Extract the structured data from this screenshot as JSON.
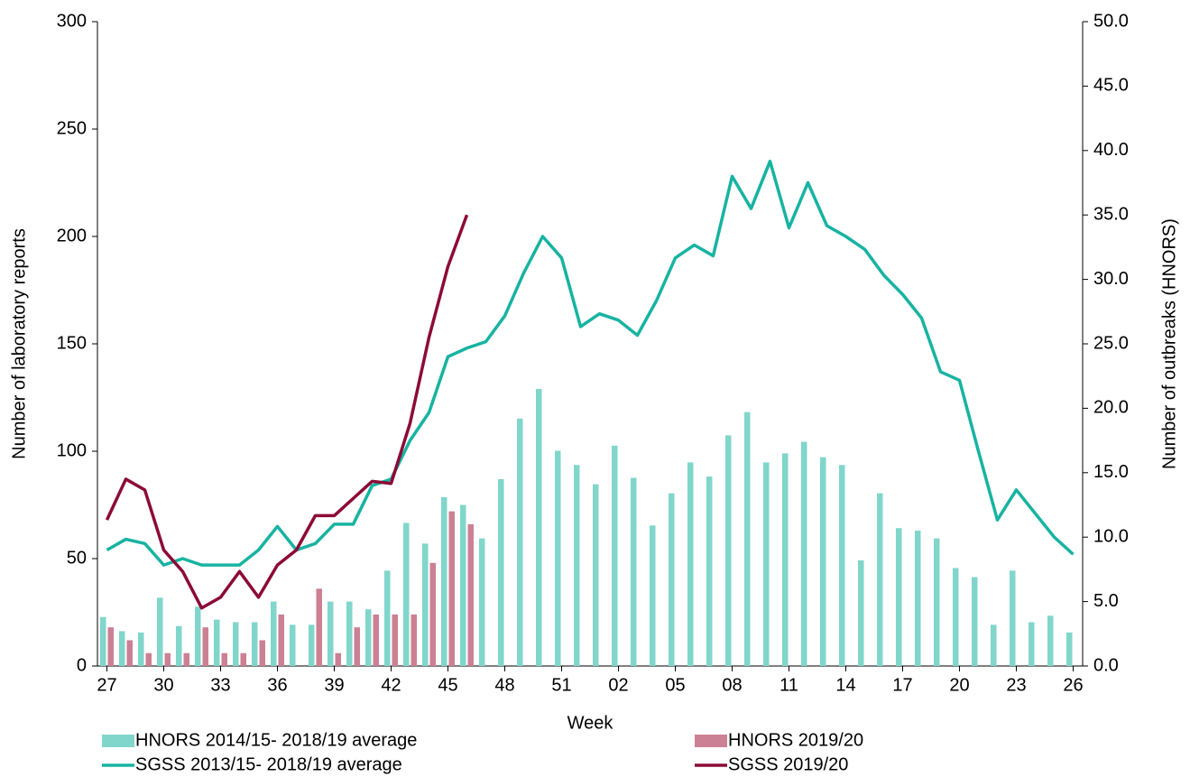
{
  "chart_data": {
    "type": "bar",
    "x_label": "Week",
    "y_label": "Number of laboratory  reports",
    "y2_label": "Number of outbreaks (HNORS)",
    "categories": [
      "27",
      null,
      null,
      "30",
      null,
      null,
      "33",
      null,
      null,
      "36",
      null,
      null,
      "39",
      null,
      null,
      "42",
      null,
      null,
      "45",
      null,
      null,
      "48",
      null,
      null,
      "51",
      null,
      null,
      "02",
      null,
      null,
      "05",
      null,
      null,
      "08",
      null,
      null,
      "11",
      null,
      null,
      "14",
      null,
      null,
      "17",
      null,
      null,
      "20",
      null,
      null,
      "23",
      null,
      null,
      "26"
    ],
    "ylim": [
      0,
      300
    ],
    "yticks": [
      0,
      50,
      100,
      150,
      200,
      250,
      300
    ],
    "y2lim": [
      0,
      50
    ],
    "y2ticks": [
      {
        "value": 0,
        "label": "0.0"
      },
      {
        "value": 5,
        "label": "5.0"
      },
      {
        "value": 10,
        "label": "10.0"
      },
      {
        "value": 15,
        "label": "15.0"
      },
      {
        "value": 20,
        "label": "20.0"
      },
      {
        "value": 25,
        "label": "25.0"
      },
      {
        "value": 30,
        "label": "30.0"
      },
      {
        "value": 35,
        "label": "35.0"
      },
      {
        "value": 40,
        "label": "40.0"
      },
      {
        "value": 45,
        "label": "45.0"
      },
      {
        "value": 50,
        "label": "50.0"
      }
    ],
    "series": [
      {
        "name": "HNORS 2014/15- 2018/19 average",
        "type": "bar",
        "axis": "y2",
        "color": "#80d6cb",
        "values": [
          3.8,
          2.7,
          2.6,
          5.3,
          3.1,
          4.6,
          3.6,
          3.4,
          3.4,
          5.0,
          3.2,
          3.2,
          5.0,
          5.0,
          4.4,
          7.4,
          11.1,
          9.5,
          13.1,
          12.5,
          9.9,
          14.5,
          19.2,
          21.5,
          16.7,
          15.6,
          14.1,
          17.1,
          14.6,
          10.9,
          13.4,
          15.8,
          14.7,
          17.9,
          19.7,
          15.8,
          16.5,
          17.4,
          16.2,
          15.6,
          8.2,
          13.4,
          10.7,
          10.5,
          9.9,
          7.6,
          6.9,
          3.2,
          7.4,
          3.4,
          3.9,
          2.6
        ]
      },
      {
        "name": "HNORS 2019/20",
        "type": "bar",
        "axis": "y2",
        "color": "#cc8093",
        "values": [
          3,
          2,
          1,
          1,
          1,
          3,
          1,
          1,
          2,
          4,
          0,
          6,
          1,
          3,
          4,
          4,
          4,
          8,
          12,
          11,
          null,
          null,
          null,
          null,
          null,
          null,
          null,
          null,
          null,
          null,
          null,
          null,
          null,
          null,
          null,
          null,
          null,
          null,
          null,
          null,
          null,
          null,
          null,
          null,
          null,
          null,
          null,
          null,
          null,
          null,
          null,
          null
        ]
      },
      {
        "name": "SGSS 2013/15- 2018/19 average",
        "type": "line",
        "color": "#17b3a1",
        "values": [
          54,
          59,
          57,
          47,
          50,
          47,
          47,
          47,
          54,
          65,
          54,
          57,
          66,
          66,
          84,
          87,
          105,
          118,
          144,
          148,
          151,
          163,
          183,
          200,
          190,
          158,
          164,
          161,
          154,
          170,
          190,
          196,
          191,
          228,
          213,
          235,
          204,
          225,
          205,
          200,
          194,
          182,
          173,
          162,
          137,
          133,
          100,
          68,
          82,
          71,
          60,
          52
        ]
      },
      {
        "name": "SGSS 2019/20",
        "type": "line",
        "color": "#8c0a36",
        "values": [
          68,
          87,
          82,
          54,
          44,
          27,
          32,
          44,
          32,
          47,
          54,
          70,
          70,
          78,
          86,
          85,
          113,
          153,
          186,
          210,
          null,
          null,
          null,
          null,
          null,
          null,
          null,
          null,
          null,
          null,
          null,
          null,
          null,
          null,
          null,
          null,
          null,
          null,
          null,
          null,
          null,
          null,
          null,
          null,
          null,
          null,
          null,
          null,
          null,
          null,
          null,
          null
        ]
      }
    ]
  }
}
